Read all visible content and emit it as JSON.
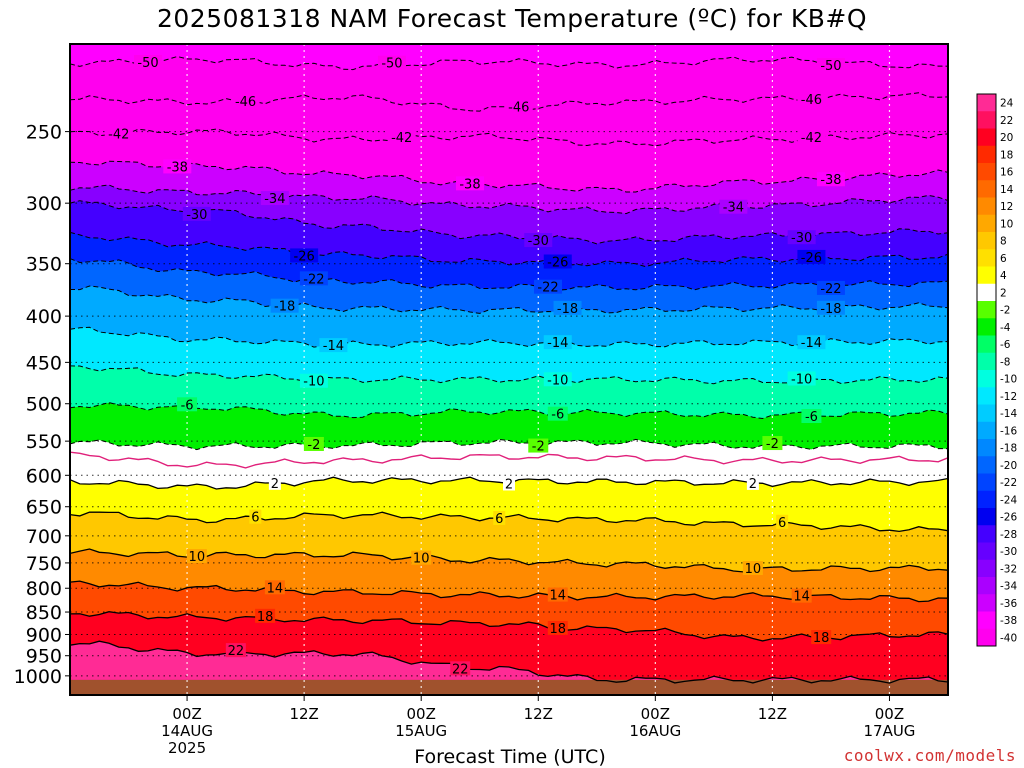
{
  "title": "2025081318 NAM Forecast Temperature (ºC) for KB#Q",
  "xlabel": "Forecast Time (UTC)",
  "credit": "coolwx.com/models",
  "chart_data": {
    "type": "heatmap",
    "title": "2025081318 NAM Forecast Temperature (ºC) for KB#Q",
    "xlabel": "Forecast Time (UTC)",
    "ylabel": "",
    "y_axis": {
      "scale": "log-pressure",
      "inverted": true,
      "ylim": [
        1050,
        200
      ],
      "ticks": [
        250,
        300,
        350,
        400,
        450,
        500,
        550,
        600,
        650,
        700,
        750,
        800,
        850,
        900,
        950,
        1000
      ]
    },
    "x_axis": {
      "xlim": [
        -6,
        84
      ],
      "ticks": [
        {
          "hour": 6,
          "label": [
            "00Z",
            "14AUG",
            "2025"
          ]
        },
        {
          "hour": 18,
          "label": [
            "12Z"
          ]
        },
        {
          "hour": 30,
          "label": [
            "00Z",
            "15AUG"
          ]
        },
        {
          "hour": 42,
          "label": [
            "12Z"
          ]
        },
        {
          "hour": 54,
          "label": [
            "00Z",
            "16AUG"
          ]
        },
        {
          "hour": 66,
          "label": [
            "12Z"
          ]
        },
        {
          "hour": 78,
          "label": [
            "00Z",
            "17AUG"
          ]
        }
      ]
    },
    "grid": true,
    "contours": [
      {
        "value": -50,
        "style": "dashed",
        "pressure": [
          210,
          208,
          212,
          209,
          211,
          208,
          212
        ],
        "labels": [
          {
            "x": 2,
            "text": "-50"
          },
          {
            "x": 27,
            "text": "-50"
          },
          {
            "x": 72,
            "text": "-50"
          }
        ]
      },
      {
        "value": -46,
        "style": "dashed",
        "pressure": [
          230,
          232,
          229,
          236,
          232,
          230,
          228
        ],
        "labels": [
          {
            "x": 12,
            "text": "-46"
          },
          {
            "x": 40,
            "text": "-46"
          },
          {
            "x": 70,
            "text": "-46"
          }
        ]
      },
      {
        "value": -42,
        "style": "dashed",
        "pressure": [
          251,
          250,
          255,
          253,
          258,
          255,
          252
        ],
        "labels": [
          {
            "x": -1,
            "text": "-42"
          },
          {
            "x": 28,
            "text": "-42"
          },
          {
            "x": 70,
            "text": "-42"
          }
        ]
      },
      {
        "value": -38,
        "style": "dashed",
        "pressure": [
          270,
          273,
          279,
          286,
          290,
          284,
          278
        ],
        "labels": [
          {
            "x": 5,
            "text": "-38"
          },
          {
            "x": 35,
            "text": "-38"
          },
          {
            "x": 72,
            "text": "-38"
          }
        ]
      },
      {
        "value": -34,
        "style": "dashed",
        "pressure": [
          288,
          292,
          296,
          302,
          306,
          302,
          296
        ],
        "labels": [
          {
            "x": 15,
            "text": "-34"
          },
          {
            "x": 62,
            "text": "-34"
          }
        ]
      },
      {
        "value": -30,
        "style": "dashed",
        "pressure": [
          300,
          306,
          318,
          326,
          330,
          326,
          322
        ],
        "labels": [
          {
            "x": 7,
            "text": "-30"
          },
          {
            "x": 42,
            "text": "-30"
          },
          {
            "x": 69,
            "text": "-30"
          }
        ]
      },
      {
        "value": -26,
        "style": "dashed",
        "pressure": [
          326,
          334,
          342,
          348,
          350,
          346,
          344
        ],
        "labels": [
          {
            "x": 18,
            "text": "-26"
          },
          {
            "x": 44,
            "text": "-26"
          },
          {
            "x": 70,
            "text": "-26"
          }
        ]
      },
      {
        "value": -22,
        "style": "dashed",
        "pressure": [
          346,
          358,
          366,
          371,
          372,
          370,
          368
        ],
        "labels": [
          {
            "x": 19,
            "text": "-22"
          },
          {
            "x": 43,
            "text": "-22"
          },
          {
            "x": 72,
            "text": "-22"
          }
        ]
      },
      {
        "value": -18,
        "style": "dashed",
        "pressure": [
          372,
          384,
          392,
          394,
          394,
          392,
          390
        ],
        "labels": [
          {
            "x": 16,
            "text": "-18"
          },
          {
            "x": 45,
            "text": "-18"
          },
          {
            "x": 72,
            "text": "-18"
          }
        ]
      },
      {
        "value": -14,
        "style": "dashed",
        "pressure": [
          414,
          425,
          430,
          428,
          430,
          428,
          426
        ],
        "labels": [
          {
            "x": 21,
            "text": "-14"
          },
          {
            "x": 44,
            "text": "-14"
          },
          {
            "x": 70,
            "text": "-14"
          }
        ]
      },
      {
        "value": -10,
        "style": "dashed",
        "pressure": [
          455,
          465,
          470,
          470,
          470,
          472,
          470
        ],
        "labels": [
          {
            "x": 19,
            "text": "-10"
          },
          {
            "x": 44,
            "text": "-10"
          },
          {
            "x": 69,
            "text": "-10"
          }
        ]
      },
      {
        "value": -6,
        "style": "dashed",
        "pressure": [
          502,
          505,
          515,
          510,
          512,
          515,
          512
        ],
        "labels": [
          {
            "x": 6,
            "text": "-6"
          },
          {
            "x": 44,
            "text": "-6"
          },
          {
            "x": 70,
            "text": "-6"
          }
        ]
      },
      {
        "value": -2,
        "style": "dashed",
        "pressure": [
          552,
          557,
          556,
          552,
          552,
          557,
          557
        ],
        "labels": [
          {
            "x": 19,
            "text": "-2"
          },
          {
            "x": 42,
            "text": "-2"
          },
          {
            "x": 66,
            "text": "-2"
          }
        ]
      },
      {
        "value": 0,
        "style": "magenta",
        "pressure": [
          570,
          585,
          578,
          572,
          574,
          578,
          576
        ],
        "labels": []
      },
      {
        "value": 2,
        "style": "solid",
        "pressure": [
          610,
          618,
          608,
          608,
          610,
          612,
          610
        ],
        "labels": [
          {
            "x": 15,
            "text": "2"
          },
          {
            "x": 39,
            "text": "2"
          },
          {
            "x": 64,
            "text": "2"
          }
        ]
      },
      {
        "value": 6,
        "style": "solid",
        "pressure": [
          660,
          672,
          664,
          668,
          672,
          680,
          690
        ],
        "labels": [
          {
            "x": 13,
            "text": "6"
          },
          {
            "x": 38,
            "text": "6"
          },
          {
            "x": 67,
            "text": "6"
          }
        ]
      },
      {
        "value": 10,
        "style": "solid",
        "pressure": [
          730,
          735,
          735,
          745,
          752,
          762,
          760
        ],
        "labels": [
          {
            "x": 7,
            "text": "10"
          },
          {
            "x": 30,
            "text": "10"
          },
          {
            "x": 64,
            "text": "10"
          }
        ]
      },
      {
        "value": 14,
        "style": "solid",
        "pressure": [
          790,
          800,
          808,
          814,
          818,
          816,
          822
        ],
        "labels": [
          {
            "x": 15,
            "text": "14"
          },
          {
            "x": 44,
            "text": "14"
          },
          {
            "x": 69,
            "text": "14"
          }
        ]
      },
      {
        "value": 18,
        "style": "solid",
        "pressure": [
          852,
          862,
          868,
          875,
          888,
          908,
          900
        ],
        "labels": [
          {
            "x": 14,
            "text": "18"
          },
          {
            "x": 44,
            "text": "18"
          },
          {
            "x": 71,
            "text": "18"
          }
        ]
      },
      {
        "value": 22,
        "style": "solid",
        "pressure": [
          920,
          945,
          945,
          980,
          1010,
          1010,
          1010
        ],
        "labels": [
          {
            "x": 11,
            "text": "22"
          },
          {
            "x": 34,
            "text": "22"
          }
        ]
      }
    ],
    "colorbar": {
      "labels": [
        "24",
        "22",
        "20",
        "18",
        "16",
        "14",
        "12",
        "10",
        "8",
        "6",
        "4",
        "2",
        "-2",
        "-4",
        "-6",
        "-8",
        "-10",
        "-12",
        "-14",
        "-16",
        "-18",
        "-20",
        "-22",
        "-24",
        "-26",
        "-28",
        "-30",
        "-32",
        "-34",
        "-36",
        "-38",
        "-40"
      ],
      "colors": [
        "#ff2b95",
        "#ff1060",
        "#ff0020",
        "#ff2a00",
        "#ff4a00",
        "#ff6a00",
        "#ff8a00",
        "#ffa800",
        "#ffc800",
        "#ffe000",
        "#ffff00",
        "#ffffff",
        "#58ff00",
        "#00f000",
        "#00ff66",
        "#00ffaa",
        "#00ffe0",
        "#00e8ff",
        "#00ccff",
        "#00aaff",
        "#0088ff",
        "#0066ff",
        "#0044ff",
        "#0022ff",
        "#0000f0",
        "#4400ff",
        "#6600ff",
        "#8800ff",
        "#aa00ff",
        "#cc00ff",
        "#ff00ff",
        "#ff00ee"
      ]
    },
    "ground_color": "#a0522d"
  }
}
